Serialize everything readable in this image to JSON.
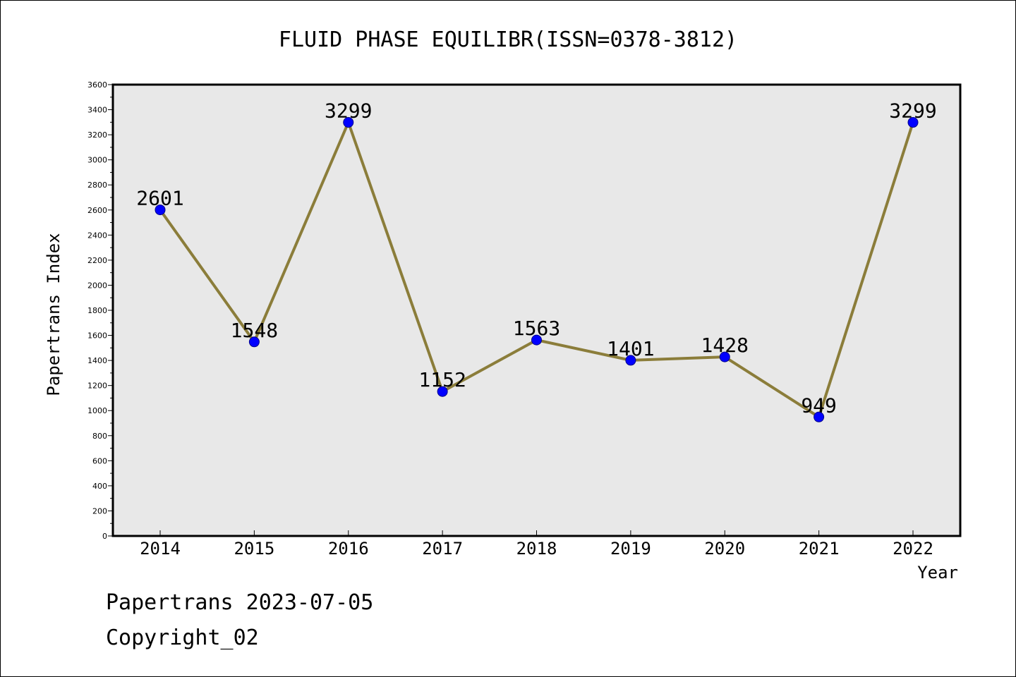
{
  "chart_data": {
    "type": "line",
    "title": "FLUID PHASE EQUILIBR(ISSN=0378-3812)",
    "xlabel": "Year",
    "ylabel": "Papertrans Index",
    "categories": [
      "2014",
      "2015",
      "2016",
      "2017",
      "2018",
      "2019",
      "2020",
      "2021",
      "2022"
    ],
    "series": [
      {
        "values": [
          2601,
          1548,
          3299,
          1152,
          1563,
          1401,
          1428,
          949,
          3299
        ]
      }
    ],
    "data_labels": [
      "2601",
      "1548",
      "3299",
      "1152",
      "1563",
      "1401",
      "1428",
      "949",
      "3299"
    ],
    "ylim": [
      0,
      3600
    ],
    "yticks": [
      0,
      200,
      400,
      600,
      800,
      1000,
      1200,
      1400,
      1600,
      1800,
      2000,
      2200,
      2400,
      2600,
      2800,
      3000,
      3200,
      3400,
      3600
    ],
    "grid": false,
    "colors": {
      "line": "#8B7D3A",
      "marker": "#0000FF",
      "plot_bg": "#E8E8E8"
    }
  },
  "footer": {
    "date_line": "Papertrans 2023-07-05",
    "copyright": "Copyright_02"
  }
}
